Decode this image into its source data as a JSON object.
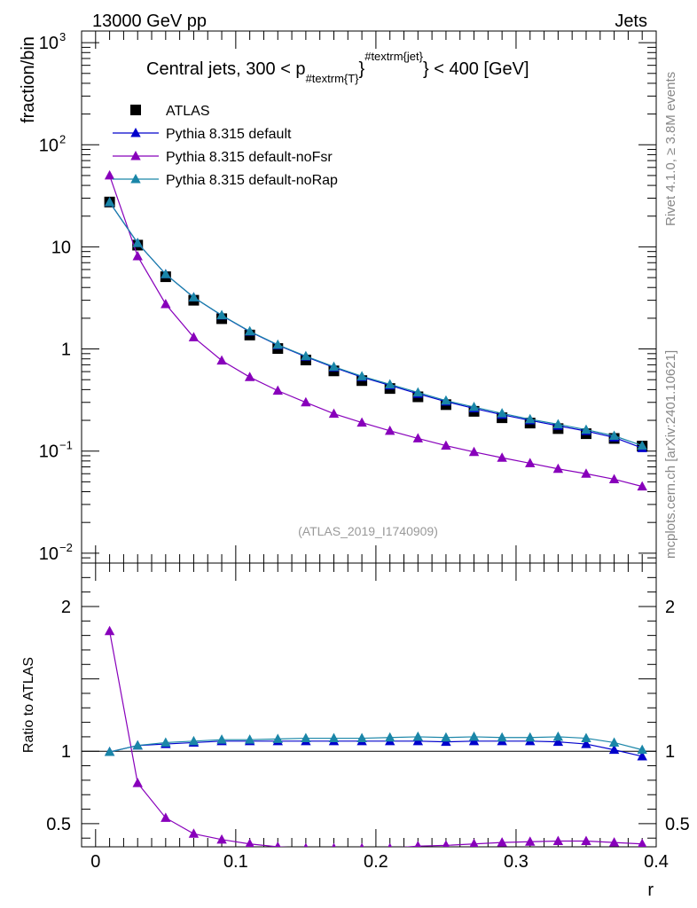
{
  "header": {
    "left": "13000 GeV pp",
    "right": "Jets"
  },
  "side_labels": {
    "rivet": "Rivet 4.1.0, ≥ 3.8M events",
    "mcplots": "mcplots.cern.ch [arXiv:2401.10621]"
  },
  "colors": {
    "atlas": "#000000",
    "default": "#0000cc",
    "noFsr": "#8800bb",
    "noRap": "#1a86a8"
  },
  "chart_data": [
    {
      "type": "line",
      "panel": "main",
      "title_parts": {
        "prefix": "Central jets, 300 < p",
        "sub": "#textrm{T}",
        "sup": "#textrm{jet}",
        "suffix": "} < 400 [GeV]"
      },
      "ylabel": "fraction/bin",
      "yscale": "log",
      "ylim": [
        0.008,
        1300
      ],
      "xlim": [
        -0.01,
        0.4
      ],
      "ytick_labels": [
        {
          "value": 0.01,
          "base": "10",
          "exp": "−2"
        },
        {
          "value": 0.1,
          "base": "10",
          "exp": "−1"
        },
        {
          "value": 1,
          "base": "1",
          "exp": ""
        },
        {
          "value": 10,
          "base": "10",
          "exp": ""
        },
        {
          "value": 100,
          "base": "10",
          "exp": "2"
        },
        {
          "value": 1000,
          "base": "10",
          "exp": "3"
        }
      ],
      "watermark": "(ATLAS_2019_I1740909)",
      "legend": [
        "ATLAS",
        "Pythia 8.315 default",
        "Pythia 8.315 default-noFsr",
        "Pythia 8.315 default-noRap"
      ],
      "x": [
        0.01,
        0.03,
        0.05,
        0.07,
        0.09,
        0.11,
        0.13,
        0.15,
        0.17,
        0.19,
        0.21,
        0.23,
        0.25,
        0.27,
        0.29,
        0.31,
        0.33,
        0.35,
        0.37,
        0.39
      ],
      "series": [
        {
          "name": "ATLAS",
          "key": "atlas",
          "marker": "square",
          "values": [
            27.5,
            10.4,
            5.1,
            3.0,
            1.98,
            1.37,
            1.01,
            0.78,
            0.61,
            0.49,
            0.41,
            0.34,
            0.285,
            0.245,
            0.212,
            0.188,
            0.166,
            0.148,
            0.133,
            0.112
          ]
        },
        {
          "name": "Pythia 8.315 default",
          "key": "default",
          "marker": "triangle",
          "values": [
            27.3,
            10.9,
            5.4,
            3.2,
            2.13,
            1.48,
            1.09,
            0.84,
            0.66,
            0.53,
            0.44,
            0.364,
            0.305,
            0.262,
            0.227,
            0.2,
            0.177,
            0.157,
            0.136,
            0.107
          ]
        },
        {
          "name": "Pythia 8.315 default-noFsr",
          "key": "noFsr",
          "marker": "triangle",
          "values": [
            50,
            8.1,
            2.75,
            1.3,
            0.77,
            0.53,
            0.39,
            0.3,
            0.232,
            0.19,
            0.158,
            0.133,
            0.113,
            0.098,
            0.086,
            0.076,
            0.067,
            0.06,
            0.053,
            0.045
          ]
        },
        {
          "name": "Pythia 8.315 default-noRap",
          "key": "noRap",
          "marker": "triangle",
          "values": [
            27.4,
            10.9,
            5.4,
            3.2,
            2.14,
            1.49,
            1.1,
            0.85,
            0.67,
            0.54,
            0.45,
            0.375,
            0.312,
            0.27,
            0.234,
            0.205,
            0.183,
            0.162,
            0.141,
            0.113
          ]
        }
      ]
    },
    {
      "type": "line",
      "panel": "ratio",
      "ylabel": "Ratio to ATLAS",
      "xlabel": "r",
      "ylim": [
        0.34,
        2.3
      ],
      "xlim": [
        -0.01,
        0.4
      ],
      "reference": 1,
      "ytick_labels": [
        {
          "value": 0.5,
          "label": "0.5"
        },
        {
          "value": 1,
          "label": "1"
        },
        {
          "value": 2,
          "label": "2"
        }
      ],
      "xtick_labels": [
        {
          "value": 0,
          "label": "0"
        },
        {
          "value": 0.1,
          "label": "0.1"
        },
        {
          "value": 0.2,
          "label": "0.2"
        },
        {
          "value": 0.3,
          "label": "0.3"
        },
        {
          "value": 0.4,
          "label": "0.4"
        }
      ],
      "x": [
        0.01,
        0.03,
        0.05,
        0.07,
        0.09,
        0.11,
        0.13,
        0.15,
        0.17,
        0.19,
        0.21,
        0.23,
        0.25,
        0.27,
        0.29,
        0.31,
        0.33,
        0.35,
        0.37,
        0.39
      ],
      "series": [
        {
          "name": "Pythia 8.315 default",
          "key": "default",
          "values": [
            0.995,
            1.04,
            1.05,
            1.06,
            1.07,
            1.07,
            1.07,
            1.07,
            1.07,
            1.07,
            1.07,
            1.07,
            1.065,
            1.07,
            1.07,
            1.07,
            1.065,
            1.05,
            1.01,
            0.965
          ]
        },
        {
          "name": "Pythia 8.315 default-noFsr",
          "key": "noFsr",
          "values": [
            1.83,
            0.78,
            0.54,
            0.43,
            0.39,
            0.36,
            0.34,
            0.33,
            0.33,
            0.33,
            0.33,
            0.345,
            0.35,
            0.36,
            0.37,
            0.375,
            0.38,
            0.38,
            0.37,
            0.36
          ]
        },
        {
          "name": "Pythia 8.315 default-noRap",
          "key": "noRap",
          "values": [
            0.995,
            1.04,
            1.06,
            1.07,
            1.08,
            1.08,
            1.085,
            1.09,
            1.09,
            1.09,
            1.095,
            1.1,
            1.095,
            1.1,
            1.095,
            1.095,
            1.1,
            1.09,
            1.06,
            1.01
          ]
        }
      ]
    }
  ]
}
